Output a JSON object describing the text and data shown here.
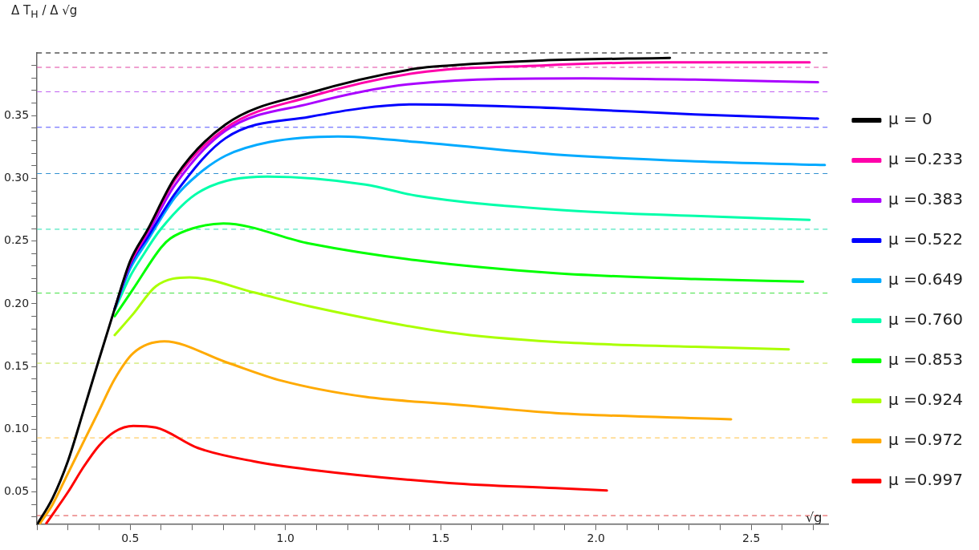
{
  "chart_data": {
    "type": "line",
    "ylabel": "Δ T$_{H}$ / Δ √g",
    "xlabel": "√g",
    "legend": "right",
    "grid": false,
    "marker": "none",
    "line_style": "solid",
    "xlim": [
      0.2,
      2.75
    ],
    "ylim": [
      0.024,
      0.4
    ],
    "xticks": [
      {
        "value": 0.2,
        "label": null
      },
      {
        "value": 0.3,
        "label": null
      },
      {
        "value": 0.4,
        "label": null
      },
      0.5,
      {
        "value": 0.6,
        "label": null
      },
      {
        "value": 0.7,
        "label": null
      },
      {
        "value": 0.8,
        "label": null
      },
      {
        "value": 0.9,
        "label": null
      },
      {
        "value": 1,
        "label": "1.0"
      },
      {
        "value": 1.1,
        "label": null
      },
      {
        "value": 1.2,
        "label": null
      },
      {
        "value": 1.3,
        "label": null
      },
      {
        "value": 1.4,
        "label": null
      },
      1.5,
      {
        "value": 1.6,
        "label": null
      },
      {
        "value": 1.7,
        "label": null
      },
      {
        "value": 1.8,
        "label": null
      },
      {
        "value": 1.9,
        "label": null
      },
      {
        "value": 2,
        "label": "2.0"
      },
      {
        "value": 2.1,
        "label": null
      },
      {
        "value": 2.2,
        "label": null
      },
      {
        "value": 2.3,
        "label": null
      },
      {
        "value": 2.4,
        "label": null
      },
      2.5,
      {
        "value": 2.6,
        "label": null
      },
      {
        "value": 2.7,
        "label": null
      }
    ],
    "yticks": [
      {
        "value": 0.03,
        "label": null
      },
      {
        "value": 0.04,
        "label": null
      },
      0.05,
      {
        "value": 0.06,
        "label": null
      },
      {
        "value": 0.07,
        "label": null
      },
      {
        "value": 0.08,
        "label": null
      },
      {
        "value": 0.09,
        "label": null
      },
      {
        "value": 0.1,
        "label": "0.10"
      },
      {
        "value": 0.11,
        "label": null
      },
      {
        "value": 0.12,
        "label": null
      },
      {
        "value": 0.13,
        "label": null
      },
      {
        "value": 0.14,
        "label": null
      },
      0.15,
      {
        "value": 0.16,
        "label": null
      },
      {
        "value": 0.17,
        "label": null
      },
      {
        "value": 0.18,
        "label": null
      },
      {
        "value": 0.19,
        "label": null
      },
      {
        "value": 0.2,
        "label": "0.20"
      },
      {
        "value": 0.21,
        "label": null
      },
      {
        "value": 0.22,
        "label": null
      },
      {
        "value": 0.23,
        "label": null
      },
      {
        "value": 0.24,
        "label": null
      },
      0.25,
      {
        "value": 0.26,
        "label": null
      },
      {
        "value": 0.27,
        "label": null
      },
      {
        "value": 0.28,
        "label": null
      },
      {
        "value": 0.29,
        "label": null
      },
      {
        "value": 0.3,
        "label": "0.30"
      },
      {
        "value": 0.31,
        "label": null
      },
      {
        "value": 0.32,
        "label": null
      },
      {
        "value": 0.33,
        "label": null
      },
      {
        "value": 0.34,
        "label": null
      },
      0.35,
      {
        "value": 0.36,
        "label": null
      },
      {
        "value": 0.37,
        "label": null
      },
      {
        "value": 0.38,
        "label": null
      },
      {
        "value": 0.39,
        "label": null
      }
    ],
    "series": [
      {
        "name": "μ = 0",
        "color": "#000000",
        "x": [
          0.2,
          0.25,
          0.3,
          0.35,
          0.4,
          0.45,
          0.5,
          0.556,
          0.645,
          0.807,
          1.077,
          1.42,
          1.528,
          1.825,
          2.238
        ],
        "values": [
          0.024,
          0.045,
          0.075,
          0.115,
          0.156,
          0.196,
          0.234,
          0.259,
          0.301,
          0.343,
          0.368,
          0.3875,
          0.39,
          0.394,
          0.396
        ]
      },
      {
        "name": "μ =0.233",
        "color": "#ff00aa",
        "x": [
          0.5,
          0.556,
          0.645,
          0.807,
          1.077,
          1.42,
          1.825,
          2.23,
          2.688
        ],
        "values": [
          0.233,
          0.258,
          0.299,
          0.34,
          0.365,
          0.384,
          0.39,
          0.3925,
          0.3925
        ]
      },
      {
        "name": "μ =0.383",
        "color": "#aa00ff",
        "x": [
          0.45,
          0.5,
          0.556,
          0.645,
          0.807,
          1.077,
          1.42,
          1.96,
          2.319,
          2.715
        ],
        "values": [
          0.196,
          0.232,
          0.256,
          0.295,
          0.338,
          0.3595,
          0.3756,
          0.3797,
          0.3787,
          0.3766
        ]
      },
      {
        "name": "μ =0.522",
        "color": "#0000ff",
        "x": [
          0.45,
          0.5,
          0.556,
          0.645,
          0.807,
          1.077,
          1.42,
          1.87,
          2.319,
          2.715
        ],
        "values": [
          0.196,
          0.231,
          0.253,
          0.288,
          0.332,
          0.349,
          0.359,
          0.356,
          0.351,
          0.3476
        ]
      },
      {
        "name": "μ =0.649",
        "color": "#00aaff",
        "x": [
          0.45,
          0.5,
          0.55,
          0.645,
          0.718,
          0.807,
          0.95,
          1.169,
          1.42,
          1.87,
          2.319,
          2.737
        ],
        "values": [
          0.196,
          0.228,
          0.248,
          0.285,
          0.303,
          0.318,
          0.329,
          0.3334,
          0.329,
          0.319,
          0.3136,
          0.3106
        ]
      },
      {
        "name": "μ =0.760",
        "color": "#00ffaa",
        "x": [
          0.45,
          0.5,
          0.537,
          0.6,
          0.718,
          0.942,
          1.258,
          1.42,
          1.87,
          2.319,
          2.688
        ],
        "values": [
          0.195,
          0.222,
          0.237,
          0.26,
          0.2885,
          0.3014,
          0.295,
          0.2862,
          0.275,
          0.27,
          0.2669
        ]
      },
      {
        "name": "μ =0.853",
        "color": "#00ff00",
        "x": [
          0.45,
          0.51,
          0.6,
          0.629,
          0.7,
          0.8,
          1.077,
          1.42,
          1.87,
          2.319,
          2.667
        ],
        "values": [
          0.19,
          0.212,
          0.245,
          0.252,
          0.26,
          0.264,
          0.248,
          0.2347,
          0.2244,
          0.2197,
          0.2176
        ]
      },
      {
        "name": "μ =0.924",
        "color": "#aaff00",
        "x": [
          0.45,
          0.51,
          0.583,
          0.691,
          0.899,
          1.077,
          1.528,
          1.87,
          2.319,
          2.621
        ],
        "values": [
          0.175,
          0.192,
          0.214,
          0.221,
          0.209,
          0.198,
          0.177,
          0.1695,
          0.1657,
          0.1637
        ]
      },
      {
        "name": "μ =0.972",
        "color": "#ffaa00",
        "x": [
          0.21,
          0.25,
          0.3,
          0.35,
          0.4,
          0.45,
          0.51,
          0.61,
          0.807,
          0.988,
          1.258,
          1.528,
          1.87,
          2.435
        ],
        "values": [
          0.025,
          0.04,
          0.065,
          0.09,
          0.115,
          0.14,
          0.1607,
          0.17,
          0.1536,
          0.1386,
          0.1257,
          0.12,
          0.1129,
          0.1079
        ]
      },
      {
        "name": "μ =0.997",
        "color": "#ff0000",
        "x": [
          0.23,
          0.3,
          0.35,
          0.4,
          0.45,
          0.51,
          0.583,
          0.718,
          0.899,
          1.077,
          1.528,
          1.87,
          2.035
        ],
        "values": [
          0.025,
          0.05,
          0.07,
          0.087,
          0.098,
          0.1026,
          0.1013,
          0.085,
          0.0743,
          0.0678,
          0.0571,
          0.053,
          0.0511
        ]
      }
    ],
    "ref_lines": [
      {
        "axis": "y",
        "value": 0.4,
        "color": "#000000",
        "line_style": "dashed"
      },
      {
        "axis": "y",
        "value": 0.3885,
        "color": "#e040a0",
        "line_style": "dashed"
      },
      {
        "axis": "y",
        "value": 0.369,
        "color": "#c060f0",
        "line_style": "dashed"
      },
      {
        "axis": "y",
        "value": 0.3407,
        "color": "#5050ff",
        "line_style": "dashed"
      },
      {
        "axis": "y",
        "value": 0.3038,
        "color": "#3090d0",
        "line_style": "dashed"
      },
      {
        "axis": "y",
        "value": 0.2594,
        "color": "#20e0b0",
        "line_style": "dashed"
      },
      {
        "axis": "y",
        "value": 0.2085,
        "color": "#40e040",
        "line_style": "dashed"
      },
      {
        "axis": "y",
        "value": 0.1526,
        "color": "#c0e040",
        "line_style": "dashed"
      },
      {
        "axis": "y",
        "value": 0.0931,
        "color": "#ffc040",
        "line_style": "dashed"
      },
      {
        "axis": "y",
        "value": 0.0311,
        "color": "#e04040",
        "line_style": "dashed"
      }
    ]
  }
}
